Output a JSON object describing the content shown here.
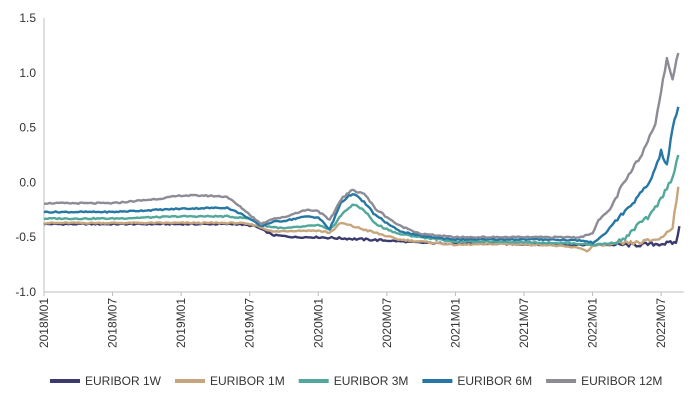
{
  "chart_data": {
    "type": "line",
    "title": "",
    "xlabel": "",
    "ylabel": "",
    "ylim": [
      -1.0,
      1.5
    ],
    "yticks": [
      1.5,
      1.0,
      0.5,
      0.0,
      -0.5,
      -1.0
    ],
    "ytick_labels": [
      "1.5",
      "1.0",
      "0.5",
      "0.0",
      "-0.5",
      "-1.0"
    ],
    "xlim": [
      0,
      56
    ],
    "xticks": [
      0,
      6,
      12,
      18,
      24,
      30,
      36,
      42,
      48,
      54
    ],
    "xtick_labels": [
      "2018M01",
      "2018M07",
      "2019M01",
      "2019M07",
      "2020M01",
      "2020M07",
      "2021M01",
      "2021M07",
      "2022M01",
      "2022M07"
    ],
    "x_units": "months since 2018M01",
    "grid": false,
    "legend_position": "bottom",
    "series": [
      {
        "name": "EURIBOR 1W",
        "color": "#3b3a6e",
        "points": [
          [
            0,
            -0.38
          ],
          [
            6,
            -0.38
          ],
          [
            12,
            -0.38
          ],
          [
            17,
            -0.38
          ],
          [
            18.5,
            -0.4
          ],
          [
            20,
            -0.48
          ],
          [
            22,
            -0.5
          ],
          [
            24,
            -0.5
          ],
          [
            26,
            -0.51
          ],
          [
            28,
            -0.52
          ],
          [
            30,
            -0.53
          ],
          [
            33,
            -0.55
          ],
          [
            36,
            -0.56
          ],
          [
            40,
            -0.56
          ],
          [
            44,
            -0.57
          ],
          [
            48,
            -0.57
          ],
          [
            50,
            -0.57
          ],
          [
            52,
            -0.57
          ],
          [
            54,
            -0.56
          ],
          [
            55.3,
            -0.55
          ],
          [
            55.6,
            -0.4
          ]
        ]
      },
      {
        "name": "EURIBOR 1M",
        "color": "#c7a67e",
        "points": [
          [
            0,
            -0.37
          ],
          [
            6,
            -0.37
          ],
          [
            12,
            -0.37
          ],
          [
            17,
            -0.37
          ],
          [
            18.5,
            -0.39
          ],
          [
            20,
            -0.45
          ],
          [
            22,
            -0.44
          ],
          [
            24,
            -0.44
          ],
          [
            25,
            -0.46
          ],
          [
            26,
            -0.37
          ],
          [
            27,
            -0.4
          ],
          [
            29,
            -0.46
          ],
          [
            31,
            -0.52
          ],
          [
            33,
            -0.54
          ],
          [
            36,
            -0.57
          ],
          [
            40,
            -0.56
          ],
          [
            44,
            -0.57
          ],
          [
            47,
            -0.6
          ],
          [
            47.5,
            -0.63
          ],
          [
            48,
            -0.58
          ],
          [
            50,
            -0.56
          ],
          [
            52,
            -0.55
          ],
          [
            54,
            -0.51
          ],
          [
            55,
            -0.4
          ],
          [
            55.5,
            -0.04
          ]
        ]
      },
      {
        "name": "EURIBOR 3M",
        "color": "#52a89a",
        "points": [
          [
            0,
            -0.33
          ],
          [
            6,
            -0.33
          ],
          [
            12,
            -0.31
          ],
          [
            16,
            -0.31
          ],
          [
            18,
            -0.33
          ],
          [
            19.5,
            -0.4
          ],
          [
            21,
            -0.42
          ],
          [
            23,
            -0.4
          ],
          [
            24,
            -0.39
          ],
          [
            25,
            -0.44
          ],
          [
            26,
            -0.3
          ],
          [
            27,
            -0.2
          ],
          [
            28,
            -0.25
          ],
          [
            29,
            -0.38
          ],
          [
            31,
            -0.47
          ],
          [
            33,
            -0.5
          ],
          [
            36,
            -0.54
          ],
          [
            40,
            -0.54
          ],
          [
            44,
            -0.55
          ],
          [
            47,
            -0.56
          ],
          [
            48,
            -0.57
          ],
          [
            50,
            -0.55
          ],
          [
            51,
            -0.5
          ],
          [
            52,
            -0.38
          ],
          [
            53,
            -0.31
          ],
          [
            54,
            -0.15
          ],
          [
            55,
            0.05
          ],
          [
            55.5,
            0.25
          ]
        ]
      },
      {
        "name": "EURIBOR 6M",
        "color": "#2677a3",
        "points": [
          [
            0,
            -0.27
          ],
          [
            6,
            -0.27
          ],
          [
            12,
            -0.24
          ],
          [
            16,
            -0.23
          ],
          [
            17.5,
            -0.3
          ],
          [
            19,
            -0.4
          ],
          [
            20,
            -0.36
          ],
          [
            21,
            -0.35
          ],
          [
            22,
            -0.33
          ],
          [
            23,
            -0.31
          ],
          [
            24,
            -0.32
          ],
          [
            25,
            -0.43
          ],
          [
            26,
            -0.18
          ],
          [
            27,
            -0.1
          ],
          [
            28,
            -0.18
          ],
          [
            29,
            -0.3
          ],
          [
            31,
            -0.44
          ],
          [
            33,
            -0.49
          ],
          [
            36,
            -0.52
          ],
          [
            40,
            -0.52
          ],
          [
            44,
            -0.52
          ],
          [
            47,
            -0.53
          ],
          [
            48,
            -0.55
          ],
          [
            49,
            -0.48
          ],
          [
            50,
            -0.35
          ],
          [
            51,
            -0.25
          ],
          [
            52,
            -0.13
          ],
          [
            53,
            0.0
          ],
          [
            54,
            0.28
          ],
          [
            54.5,
            0.15
          ],
          [
            55,
            0.5
          ],
          [
            55.5,
            0.69
          ]
        ]
      },
      {
        "name": "EURIBOR 12M",
        "color": "#8d8c96",
        "points": [
          [
            0,
            -0.19
          ],
          [
            6,
            -0.19
          ],
          [
            10,
            -0.15
          ],
          [
            12,
            -0.12
          ],
          [
            14,
            -0.12
          ],
          [
            16,
            -0.13
          ],
          [
            17.5,
            -0.25
          ],
          [
            19,
            -0.38
          ],
          [
            20,
            -0.33
          ],
          [
            21,
            -0.32
          ],
          [
            22,
            -0.28
          ],
          [
            23,
            -0.25
          ],
          [
            24,
            -0.26
          ],
          [
            25,
            -0.35
          ],
          [
            26,
            -0.15
          ],
          [
            27,
            -0.07
          ],
          [
            28,
            -0.1
          ],
          [
            29,
            -0.24
          ],
          [
            31,
            -0.39
          ],
          [
            33,
            -0.47
          ],
          [
            36,
            -0.5
          ],
          [
            40,
            -0.5
          ],
          [
            44,
            -0.5
          ],
          [
            47,
            -0.5
          ],
          [
            48,
            -0.46
          ],
          [
            48.5,
            -0.35
          ],
          [
            49.5,
            -0.25
          ],
          [
            50.5,
            -0.05
          ],
          [
            51.5,
            0.12
          ],
          [
            52.5,
            0.3
          ],
          [
            53.5,
            0.55
          ],
          [
            54.5,
            1.12
          ],
          [
            55,
            0.95
          ],
          [
            55.5,
            1.18
          ]
        ]
      }
    ]
  }
}
